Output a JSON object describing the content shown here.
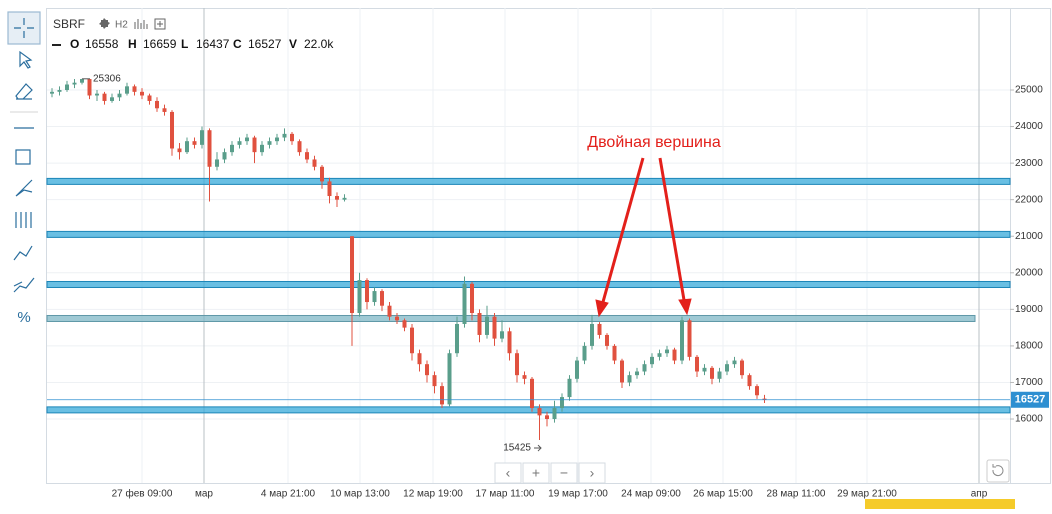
{
  "chart_data": {
    "type": "candlestick",
    "symbol": "SBRF",
    "interval": "H2",
    "field_names": [
      "O",
      "H",
      "L",
      "C",
      "V"
    ],
    "volume": {
      "value": 22000,
      "label": "22.0k"
    },
    "annotation": "Двойная вершина",
    "nav_buttons": [
      "‹",
      "+",
      "−",
      "›"
    ],
    "toolbar_percent": "%",
    "up_color": "#5a9e8b",
    "down_color": "#e0513f",
    "ylim": [
      14250,
      27243
    ],
    "yticks": [
      16000,
      17000,
      18000,
      19000,
      20000,
      21000,
      22000,
      23000,
      24000,
      25000
    ],
    "grid": true,
    "x_labels": [
      "27 фев 09:00",
      "мар",
      "4 мар 21:00",
      "10 мар 13:00",
      "12 мар 19:00",
      "17 мар 11:00",
      "19 мар 17:00",
      "24 мар 09:00",
      "26 мар 15:00",
      "28 мар 11:00",
      "29 мар 21:00",
      "апр"
    ],
    "levels": [
      22500,
      21050,
      19680,
      18750,
      16250
    ],
    "level_colors": [
      "#37a9d9",
      "#37a9d9",
      "#37a9d9",
      "#7fb7c6",
      "#37a9d9"
    ],
    "open": [
      24900,
      24950,
      25000,
      25150,
      25200,
      25300,
      24850,
      24900,
      24700,
      24800,
      24900,
      25100,
      24950,
      24850,
      24700,
      24500,
      24400,
      23400,
      23300,
      23600,
      23500,
      23900,
      22900,
      23100,
      23300,
      23500,
      23600,
      23700,
      23300,
      23500,
      23600,
      23700,
      23800,
      23600,
      23300,
      23100,
      22900,
      22500,
      22100,
      22000,
      21000,
      18900,
      19800,
      19200,
      19500,
      19100,
      18800,
      18700,
      18500,
      17800,
      17500,
      17200,
      16900,
      16400,
      17800,
      18600,
      19700,
      18900,
      18300,
      18800,
      18200,
      18400,
      17800,
      17200,
      17100,
      16300,
      16100,
      16000,
      16300,
      16600,
      17100,
      17600,
      18000,
      18600,
      18300,
      18000,
      17600,
      17000,
      17200,
      17300,
      17500,
      17700,
      17800,
      17900,
      17600,
      18700,
      17700,
      17300,
      17400,
      17100,
      17300,
      17500,
      17600,
      17200,
      16900,
      16558
    ],
    "high": [
      25050,
      25100,
      25250,
      25300,
      25306,
      25300,
      25000,
      24950,
      24900,
      25000,
      25200,
      25150,
      25050,
      24900,
      24800,
      24600,
      24450,
      23550,
      23700,
      23700,
      24000,
      23950,
      23300,
      23400,
      23600,
      23700,
      23800,
      23750,
      23600,
      23700,
      23800,
      23950,
      23850,
      23650,
      23400,
      23200,
      22950,
      22600,
      22200,
      22150,
      21000,
      20000,
      19850,
      19600,
      19550,
      19200,
      18900,
      18750,
      18600,
      17900,
      17600,
      17300,
      17000,
      17900,
      18800,
      19900,
      19750,
      19000,
      19100,
      18900,
      18700,
      18500,
      17900,
      17300,
      17150,
      16400,
      16200,
      16500,
      16700,
      17200,
      17700,
      18100,
      18850,
      18650,
      18350,
      18050,
      17650,
      17300,
      17400,
      17600,
      17800,
      17900,
      18000,
      17950,
      18800,
      18750,
      17750,
      17500,
      17450,
      17400,
      17600,
      17700,
      17650,
      17250,
      16950,
      16659
    ],
    "low": [
      24800,
      24850,
      24950,
      25050,
      25150,
      24750,
      24700,
      24600,
      24650,
      24700,
      24850,
      24850,
      24750,
      24600,
      24400,
      24300,
      23200,
      23100,
      23250,
      23400,
      23400,
      21950,
      22800,
      23000,
      23200,
      23400,
      23500,
      23000,
      23200,
      23400,
      23500,
      23600,
      23500,
      23200,
      23000,
      22800,
      22300,
      21900,
      21800,
      21950,
      18000,
      18800,
      19000,
      19100,
      18950,
      18700,
      18600,
      18400,
      17600,
      17300,
      17000,
      16700,
      16300,
      16350,
      17700,
      18500,
      18700,
      18100,
      18200,
      18000,
      18100,
      17600,
      17000,
      16950,
      16200,
      15425,
      15800,
      15900,
      16200,
      16500,
      17000,
      17500,
      17900,
      18200,
      17900,
      17500,
      16850,
      16900,
      17100,
      17200,
      17400,
      17600,
      17700,
      17500,
      17500,
      17600,
      17150,
      17200,
      16950,
      17000,
      17200,
      17400,
      17100,
      16800,
      16550,
      16437
    ],
    "close": [
      24950,
      25000,
      25150,
      25200,
      25300,
      24850,
      24900,
      24700,
      24800,
      24900,
      25100,
      24950,
      24850,
      24700,
      24500,
      24400,
      23400,
      23300,
      23600,
      23500,
      23900,
      22900,
      23100,
      23300,
      23500,
      23600,
      23700,
      23300,
      23500,
      23600,
      23700,
      23800,
      23600,
      23300,
      23100,
      22900,
      22500,
      22100,
      22000,
      22050,
      18900,
      19800,
      19200,
      19500,
      19100,
      18800,
      18700,
      18500,
      17800,
      17500,
      17200,
      16900,
      16400,
      17800,
      18600,
      19700,
      18900,
      18300,
      18800,
      18200,
      18400,
      17800,
      17200,
      17100,
      16300,
      16100,
      16000,
      16300,
      16600,
      17100,
      17600,
      18000,
      18600,
      18300,
      18000,
      17600,
      17000,
      17200,
      17300,
      17500,
      17700,
      17800,
      17900,
      17600,
      18700,
      17700,
      17300,
      17400,
      17100,
      17300,
      17500,
      17600,
      17200,
      16900,
      16650,
      16527
    ]
  }
}
